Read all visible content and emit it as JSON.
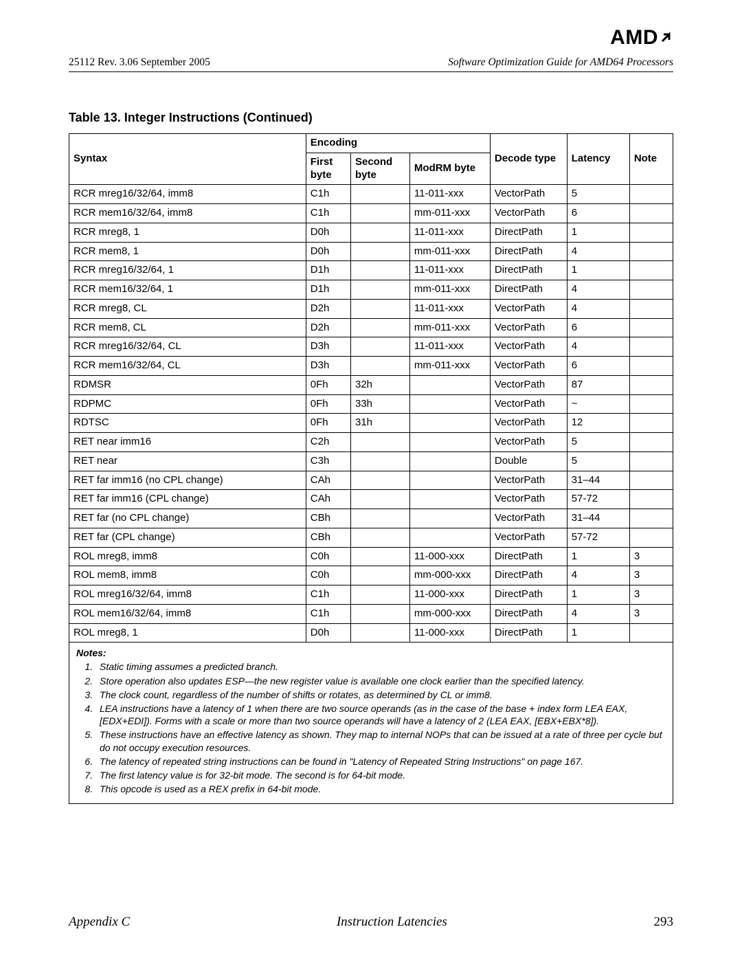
{
  "logo": {
    "text": "AMD",
    "arrow": "↗"
  },
  "header": {
    "doc_id": "25112   Rev. 3.06   September 2005",
    "doc_title": "Software Optimization Guide for AMD64 Processors"
  },
  "table_title": "Table 13.    Integer Instructions (Continued)",
  "columns": {
    "syntax": "Syntax",
    "encoding": "Encoding",
    "first_byte": "First byte",
    "second_byte": "Second byte",
    "modrm_byte": "ModRM byte",
    "decode_type": "Decode type",
    "latency": "Latency",
    "note": "Note"
  },
  "rows": [
    {
      "s": "RCR mreg16/32/64, imm8",
      "fb": "C1h",
      "sb": "",
      "mr": "11-011-xxx",
      "dt": "VectorPath",
      "lat": "5",
      "n": ""
    },
    {
      "s": "RCR mem16/32/64, imm8",
      "fb": "C1h",
      "sb": "",
      "mr": "mm-011-xxx",
      "dt": "VectorPath",
      "lat": "6",
      "n": ""
    },
    {
      "s": "RCR mreg8, 1",
      "fb": "D0h",
      "sb": "",
      "mr": "11-011-xxx",
      "dt": "DirectPath",
      "lat": "1",
      "n": ""
    },
    {
      "s": "RCR mem8, 1",
      "fb": "D0h",
      "sb": "",
      "mr": "mm-011-xxx",
      "dt": "DirectPath",
      "lat": "4",
      "n": ""
    },
    {
      "s": "RCR mreg16/32/64, 1",
      "fb": "D1h",
      "sb": "",
      "mr": "11-011-xxx",
      "dt": "DirectPath",
      "lat": "1",
      "n": ""
    },
    {
      "s": "RCR mem16/32/64, 1",
      "fb": "D1h",
      "sb": "",
      "mr": "mm-011-xxx",
      "dt": "DirectPath",
      "lat": "4",
      "n": ""
    },
    {
      "s": "RCR mreg8, CL",
      "fb": "D2h",
      "sb": "",
      "mr": "11-011-xxx",
      "dt": "VectorPath",
      "lat": "4",
      "n": ""
    },
    {
      "s": "RCR mem8, CL",
      "fb": "D2h",
      "sb": "",
      "mr": "mm-011-xxx",
      "dt": "VectorPath",
      "lat": "6",
      "n": ""
    },
    {
      "s": "RCR mreg16/32/64, CL",
      "fb": "D3h",
      "sb": "",
      "mr": "11-011-xxx",
      "dt": "VectorPath",
      "lat": "4",
      "n": ""
    },
    {
      "s": "RCR mem16/32/64, CL",
      "fb": "D3h",
      "sb": "",
      "mr": "mm-011-xxx",
      "dt": "VectorPath",
      "lat": "6",
      "n": ""
    },
    {
      "s": "RDMSR",
      "fb": "0Fh",
      "sb": "32h",
      "mr": "",
      "dt": "VectorPath",
      "lat": "87",
      "n": ""
    },
    {
      "s": "RDPMC",
      "fb": "0Fh",
      "sb": "33h",
      "mr": "",
      "dt": "VectorPath",
      "lat": "~",
      "n": ""
    },
    {
      "s": "RDTSC",
      "fb": "0Fh",
      "sb": "31h",
      "mr": "",
      "dt": "VectorPath",
      "lat": "12",
      "n": ""
    },
    {
      "s": "RET near imm16",
      "fb": "C2h",
      "sb": "",
      "mr": "",
      "dt": "VectorPath",
      "lat": "5",
      "n": ""
    },
    {
      "s": "RET near",
      "fb": "C3h",
      "sb": "",
      "mr": "",
      "dt": "Double",
      "lat": "5",
      "n": ""
    },
    {
      "s": "RET far imm16 (no CPL change)",
      "fb": "CAh",
      "sb": "",
      "mr": "",
      "dt": "VectorPath",
      "lat": "31–44",
      "n": ""
    },
    {
      "s": "RET far imm16 (CPL change)",
      "fb": "CAh",
      "sb": "",
      "mr": "",
      "dt": "VectorPath",
      "lat": "57-72",
      "n": ""
    },
    {
      "s": "RET far (no CPL change)",
      "fb": "CBh",
      "sb": "",
      "mr": "",
      "dt": "VectorPath",
      "lat": "31–44",
      "n": ""
    },
    {
      "s": "RET far (CPL change)",
      "fb": "CBh",
      "sb": "",
      "mr": "",
      "dt": "VectorPath",
      "lat": "57-72",
      "n": ""
    },
    {
      "s": "ROL mreg8, imm8",
      "fb": "C0h",
      "sb": "",
      "mr": "11-000-xxx",
      "dt": "DirectPath",
      "lat": "1",
      "n": "3"
    },
    {
      "s": "ROL mem8, imm8",
      "fb": "C0h",
      "sb": "",
      "mr": "mm-000-xxx",
      "dt": "DirectPath",
      "lat": "4",
      "n": "3"
    },
    {
      "s": "ROL mreg16/32/64, imm8",
      "fb": "C1h",
      "sb": "",
      "mr": "11-000-xxx",
      "dt": "DirectPath",
      "lat": "1",
      "n": "3"
    },
    {
      "s": "ROL mem16/32/64, imm8",
      "fb": "C1h",
      "sb": "",
      "mr": "mm-000-xxx",
      "dt": "DirectPath",
      "lat": "4",
      "n": "3"
    },
    {
      "s": "ROL mreg8, 1",
      "fb": "D0h",
      "sb": "",
      "mr": "11-000-xxx",
      "dt": "DirectPath",
      "lat": "1",
      "n": ""
    }
  ],
  "notes_title": "Notes:",
  "notes": [
    "Static timing assumes a predicted branch.",
    "Store operation also updates ESP—the new register value is available one clock earlier than the specified latency.",
    "The clock count, regardless of the number of shifts or rotates, as determined by CL or imm8.",
    "LEA instructions have a latency of 1 when there are two source operands (as in the case of the base + index form LEA EAX, [EDX+EDI]). Forms with a scale or more than two source operands will have a latency of 2 (LEA EAX, [EBX+EBX*8]).",
    "These instructions have an effective latency as shown. They map to internal NOPs that can be issued at a rate of three per cycle but do not occupy execution resources.",
    "The latency of repeated string instructions can be found in \"Latency of Repeated String Instructions\" on page 167.",
    "The first latency value is for 32-bit mode. The second is for 64-bit mode.",
    "This opcode is used as a REX prefix in 64-bit mode."
  ],
  "footer": {
    "appendix": "Appendix C",
    "section": "Instruction Latencies",
    "page": "293"
  }
}
